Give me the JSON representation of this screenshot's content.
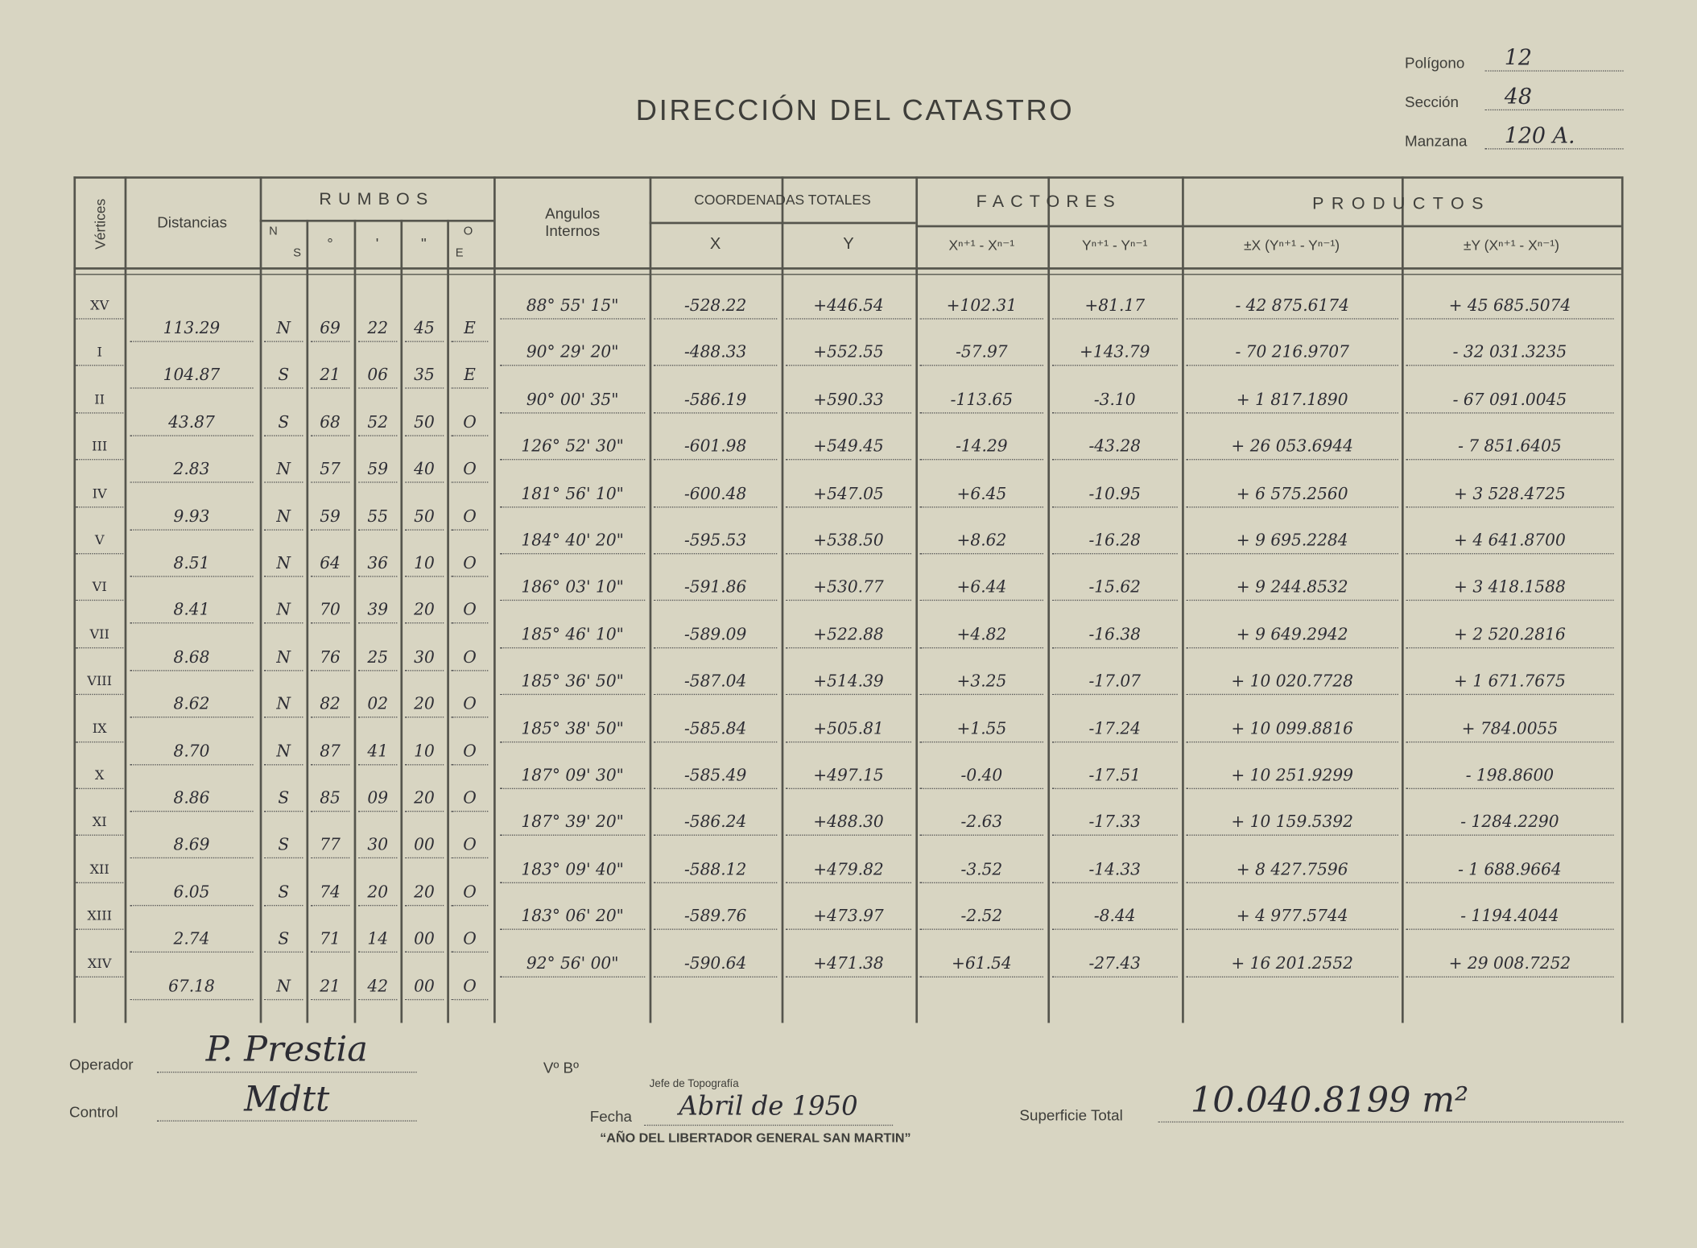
{
  "header": {
    "title": "DIRECCIÓN DEL CATASTRO",
    "fields": [
      {
        "label": "Polígono",
        "value": "12"
      },
      {
        "label": "Sección",
        "value": "48"
      },
      {
        "label": "Manzana",
        "value": "120 A."
      }
    ]
  },
  "table": {
    "headers": {
      "vertices": "Vértices",
      "distances": "Distancias",
      "rumbos": "RUMBOS",
      "ns": [
        "N",
        "S"
      ],
      "deg": "°",
      "min": "'",
      "sec": "\"",
      "oe": [
        "O",
        "E"
      ],
      "angles": "Angulos Internos",
      "coords": "COORDENADAS TOTALES",
      "x": "X",
      "y": "Y",
      "factors": "FACTORES",
      "fx": "Xⁿ⁺¹ - Xⁿ⁻¹",
      "fy": "Yⁿ⁺¹ - Yⁿ⁻¹",
      "products": "PRODUCTOS",
      "px": "±X (Yⁿ⁺¹ - Yⁿ⁻¹)",
      "py": "±Y (Xⁿ⁺¹ - Xⁿ⁻¹)"
    },
    "vertices": [
      [
        "XV",
        "88° 55' 15\"",
        "-528.22",
        "+446.54",
        "+102.31",
        "+81.17",
        "- 42 875.6174",
        "+ 45 685.5074"
      ],
      [
        "I",
        "90° 29' 20\"",
        "-488.33",
        "+552.55",
        "-57.97",
        "+143.79",
        "- 70 216.9707",
        "- 32 031.3235"
      ],
      [
        "II",
        "90° 00' 35\"",
        "-586.19",
        "+590.33",
        "-113.65",
        "-3.10",
        "+ 1 817.1890",
        "- 67 091.0045"
      ],
      [
        "III",
        "126° 52' 30\"",
        "-601.98",
        "+549.45",
        "-14.29",
        "-43.28",
        "+ 26 053.6944",
        "- 7 851.6405"
      ],
      [
        "IV",
        "181° 56' 10\"",
        "-600.48",
        "+547.05",
        "+6.45",
        "-10.95",
        "+ 6 575.2560",
        "+ 3 528.4725"
      ],
      [
        "V",
        "184° 40' 20\"",
        "-595.53",
        "+538.50",
        "+8.62",
        "-16.28",
        "+ 9 695.2284",
        "+ 4 641.8700"
      ],
      [
        "VI",
        "186° 03' 10\"",
        "-591.86",
        "+530.77",
        "+6.44",
        "-15.62",
        "+ 9 244.8532",
        "+ 3 418.1588"
      ],
      [
        "VII",
        "185° 46' 10\"",
        "-589.09",
        "+522.88",
        "+4.82",
        "-16.38",
        "+ 9 649.2942",
        "+ 2 520.2816"
      ],
      [
        "VIII",
        "185° 36' 50\"",
        "-587.04",
        "+514.39",
        "+3.25",
        "-17.07",
        "+ 10 020.7728",
        "+ 1 671.7675"
      ],
      [
        "IX",
        "185° 38' 50\"",
        "-585.84",
        "+505.81",
        "+1.55",
        "-17.24",
        "+ 10 099.8816",
        "+ 784.0055"
      ],
      [
        "X",
        "187° 09' 30\"",
        "-585.49",
        "+497.15",
        "-0.40",
        "-17.51",
        "+ 10 251.9299",
        "- 198.8600"
      ],
      [
        "XI",
        "187° 39' 20\"",
        "-586.24",
        "+488.30",
        "-2.63",
        "-17.33",
        "+ 10 159.5392",
        "- 1284.2290"
      ],
      [
        "XII",
        "183° 09' 40\"",
        "-588.12",
        "+479.82",
        "-3.52",
        "-14.33",
        "+ 8 427.7596",
        "- 1 688.9664"
      ],
      [
        "XIII",
        "183° 06' 20\"",
        "-589.76",
        "+473.97",
        "-2.52",
        "-8.44",
        "+ 4 977.5744",
        "- 1194.4044"
      ],
      [
        "XIV",
        "92° 56' 00\"",
        "-590.64",
        "+471.38",
        "+61.54",
        "-27.43",
        "+ 16 201.2552",
        "+ 29 008.7252"
      ]
    ],
    "sides": [
      [
        "113.29",
        "N",
        "69",
        "22",
        "45",
        "E"
      ],
      [
        "104.87",
        "S",
        "21",
        "06",
        "35",
        "E"
      ],
      [
        "43.87",
        "S",
        "68",
        "52",
        "50",
        "O"
      ],
      [
        "2.83",
        "N",
        "57",
        "59",
        "40",
        "O"
      ],
      [
        "9.93",
        "N",
        "59",
        "55",
        "50",
        "O"
      ],
      [
        "8.51",
        "N",
        "64",
        "36",
        "10",
        "O"
      ],
      [
        "8.41",
        "N",
        "70",
        "39",
        "20",
        "O"
      ],
      [
        "8.68",
        "N",
        "76",
        "25",
        "30",
        "O"
      ],
      [
        "8.62",
        "N",
        "82",
        "02",
        "20",
        "O"
      ],
      [
        "8.70",
        "N",
        "87",
        "41",
        "10",
        "O"
      ],
      [
        "8.86",
        "S",
        "85",
        "09",
        "20",
        "O"
      ],
      [
        "8.69",
        "S",
        "77",
        "30",
        "00",
        "O"
      ],
      [
        "6.05",
        "S",
        "74",
        "20",
        "20",
        "O"
      ],
      [
        "2.74",
        "S",
        "71",
        "14",
        "00",
        "O"
      ],
      [
        "67.18",
        "N",
        "21",
        "42",
        "00",
        "O"
      ]
    ]
  },
  "footer": {
    "operator_label": "Operador",
    "operator": "P. Prestia",
    "control_label": "Control",
    "control": "Mdtt",
    "approval": "Vº Bº",
    "chief": "Jefe de Topografía",
    "date_label": "Fecha",
    "date": "Abril de 1950",
    "motto": "“AÑO DEL LIBERTADOR GENERAL SAN MARTIN”",
    "area_label": "Superficie Total",
    "area": "10.040.8199 m²"
  }
}
